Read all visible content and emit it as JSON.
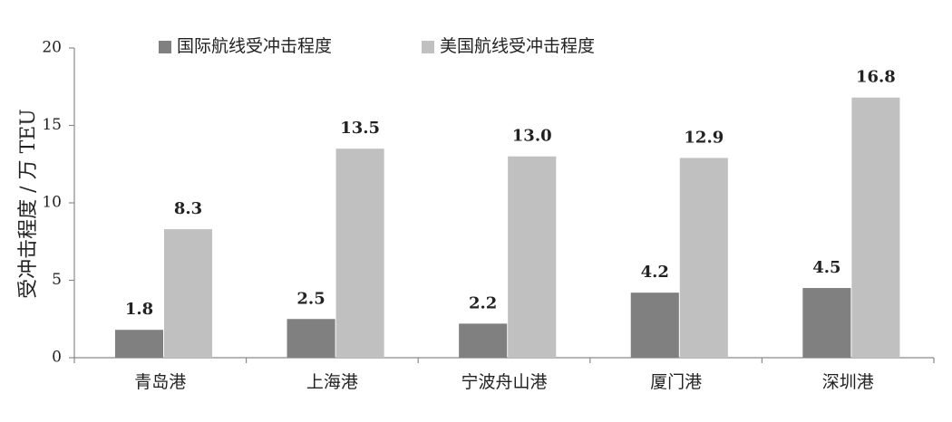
{
  "chart_data": {
    "type": "bar",
    "y_label": "受冲击程度 / 万 TEU",
    "categories": [
      "青岛港",
      "上海港",
      "宁波舟山港",
      "厦门港",
      "深圳港"
    ],
    "series": [
      {
        "name": "国际航线受冲击程度",
        "color": "#808080",
        "values": [
          1.8,
          2.5,
          2.2,
          4.2,
          4.5
        ],
        "value_labels": [
          "1.8",
          "2.5",
          "2.2",
          "4.2",
          "4.5"
        ]
      },
      {
        "name": "美国航线受冲击程度",
        "color": "#c0c0c0",
        "values": [
          8.3,
          13.5,
          13.0,
          12.9,
          16.8
        ],
        "value_labels": [
          "8.3",
          "13.5",
          "13.0",
          "12.9",
          "16.8"
        ]
      }
    ],
    "ylim": [
      0,
      20
    ],
    "yticks": [
      0,
      5,
      10,
      15,
      20
    ],
    "grid": false,
    "legend": "top"
  }
}
